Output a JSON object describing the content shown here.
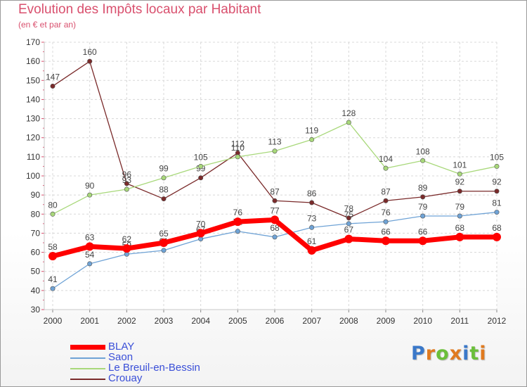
{
  "chart_data": {
    "type": "line",
    "title": "Evolution des Impôts locaux par Habitant",
    "subtitle": "(en € et par an)",
    "x": [
      "2000",
      "2001",
      "2002",
      "2003",
      "2004",
      "2005",
      "2006",
      "2007",
      "2008",
      "2009",
      "2010",
      "2011",
      "2012"
    ],
    "ylim": [
      30,
      170
    ],
    "yticks": [
      30,
      40,
      50,
      60,
      70,
      80,
      90,
      100,
      110,
      120,
      130,
      140,
      150,
      160,
      170
    ],
    "grid": true,
    "legend_position": "bottom-left",
    "series": [
      {
        "name": "BLAY",
        "color": "#ff0000",
        "values": [
          58,
          63,
          62,
          65,
          70,
          76,
          77,
          61,
          67,
          66,
          66,
          68,
          68
        ]
      },
      {
        "name": "Saon",
        "color": "#6fa3d6",
        "values": [
          41,
          54,
          59,
          61,
          67,
          71,
          68,
          73,
          75,
          76,
          79,
          79,
          81
        ]
      },
      {
        "name": "Le Breuil-en-Bessin",
        "color": "#a8d87a",
        "values": [
          80,
          90,
          93,
          99,
          105,
          110,
          113,
          119,
          128,
          104,
          108,
          101,
          105
        ]
      },
      {
        "name": "Crouay",
        "color": "#7a2a2a",
        "values": [
          147,
          160,
          96,
          88,
          99,
          112,
          87,
          86,
          78,
          87,
          89,
          92,
          92
        ]
      }
    ]
  },
  "logo": {
    "text": "Proxiti",
    "letters": [
      {
        "ch": "P",
        "color": "#3a78c9"
      },
      {
        "ch": "r",
        "color": "#e07a1f"
      },
      {
        "ch": "o",
        "color": "#6bbf3a"
      },
      {
        "ch": "x",
        "color": "#e07a1f"
      },
      {
        "ch": "i",
        "color": "#3a78c9"
      },
      {
        "ch": "t",
        "color": "#6bbf3a"
      },
      {
        "ch": "i",
        "color": "#e07a1f"
      }
    ]
  }
}
